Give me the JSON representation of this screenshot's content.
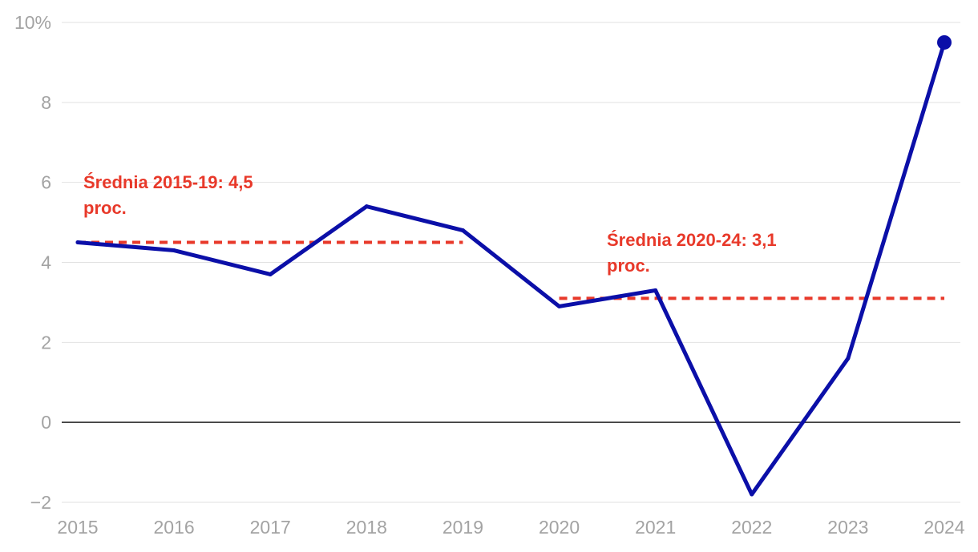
{
  "chart_data": {
    "type": "line",
    "x": [
      2015,
      2016,
      2017,
      2018,
      2019,
      2020,
      2021,
      2022,
      2023,
      2024
    ],
    "x_tick_labels": [
      "2015",
      "2016",
      "2017",
      "2018",
      "2019",
      "2020",
      "2021",
      "2022",
      "2023",
      "2024"
    ],
    "series": [
      {
        "values": [
          4.5,
          4.3,
          3.7,
          5.4,
          4.8,
          2.9,
          3.3,
          -1.8,
          1.6,
          9.5
        ],
        "color": "#0b0fa8",
        "end_marker": true
      }
    ],
    "averages": [
      {
        "label_line1": "Średnia 2015-19: 4,5",
        "label_line2": "proc.",
        "value": 4.5,
        "x_start": 2015,
        "x_end": 2019,
        "color": "#e8392a"
      },
      {
        "label_line1": "Średnia 2020-24: 3,1",
        "label_line2": "proc.",
        "value": 3.1,
        "x_start": 2020,
        "x_end": 2024,
        "color": "#e8392a"
      }
    ],
    "ylim": [
      -2,
      10
    ],
    "y_ticks": [
      -2,
      0,
      2,
      4,
      6,
      8,
      10
    ],
    "y_tick_labels": [
      "−2",
      "0",
      "2",
      "4",
      "6",
      "8",
      "10%"
    ],
    "grid": true,
    "zero_line": true,
    "title": "",
    "xlabel": "",
    "ylabel": ""
  }
}
